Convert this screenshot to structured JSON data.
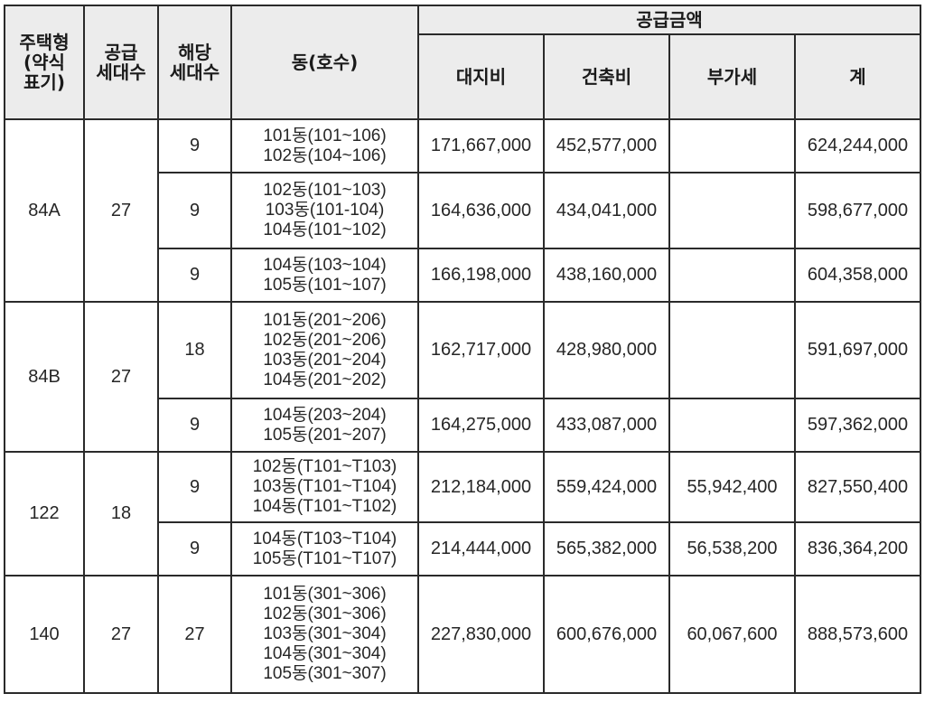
{
  "header": {
    "type": [
      "주택형",
      "(약식",
      "표기)"
    ],
    "supply_units": [
      "공급",
      "세대수"
    ],
    "applicable_units": [
      "해당",
      "세대수"
    ],
    "dong": "동(호수)",
    "price_group": "공급금액",
    "land": "대지비",
    "building": "건축비",
    "vat": "부가세",
    "total": "계"
  },
  "groups": [
    {
      "type": "84A",
      "supply_units": "27",
      "rows": [
        {
          "units": "9",
          "dong": [
            "101동(101~106)",
            "102동(104~106)"
          ],
          "land": "171,667,000",
          "building": "452,577,000",
          "vat": "",
          "total": "624,244,000"
        },
        {
          "units": "9",
          "dong": [
            "102동(101~103)",
            "103동(101-104)",
            "104동(101~102)"
          ],
          "land": "164,636,000",
          "building": "434,041,000",
          "vat": "",
          "total": "598,677,000"
        },
        {
          "units": "9",
          "dong": [
            "104동(103~104)",
            "105동(101~107)"
          ],
          "land": "166,198,000",
          "building": "438,160,000",
          "vat": "",
          "total": "604,358,000"
        }
      ]
    },
    {
      "type": "84B",
      "supply_units": "27",
      "rows": [
        {
          "units": "18",
          "dong": [
            "101동(201~206)",
            "102동(201~206)",
            "103동(201~204)",
            "104동(201~202)"
          ],
          "land": "162,717,000",
          "building": "428,980,000",
          "vat": "",
          "total": "591,697,000"
        },
        {
          "units": "9",
          "dong": [
            "104동(203~204)",
            "105동(201~207)"
          ],
          "land": "164,275,000",
          "building": "433,087,000",
          "vat": "",
          "total": "597,362,000"
        }
      ]
    },
    {
      "type": "122",
      "supply_units": "18",
      "rows": [
        {
          "units": "9",
          "dong": [
            "102동(T101~T103)",
            "103동(T101~T104)",
            "104동(T101~T102)"
          ],
          "land": "212,184,000",
          "building": "559,424,000",
          "vat": "55,942,400",
          "total": "827,550,400"
        },
        {
          "units": "9",
          "dong": [
            "104동(T103~T104)",
            "105동(T101~T107)"
          ],
          "land": "214,444,000",
          "building": "565,382,000",
          "vat": "56,538,200",
          "total": "836,364,200"
        }
      ]
    },
    {
      "type": "140",
      "supply_units": "27",
      "rows": [
        {
          "units": "27",
          "dong": [
            "101동(301~306)",
            "102동(301~306)",
            "103동(301~304)",
            "104동(301~304)",
            "105동(301~307)"
          ],
          "land": "227,830,000",
          "building": "600,676,000",
          "vat": "60,067,600",
          "total": "888,573,600"
        }
      ]
    }
  ]
}
